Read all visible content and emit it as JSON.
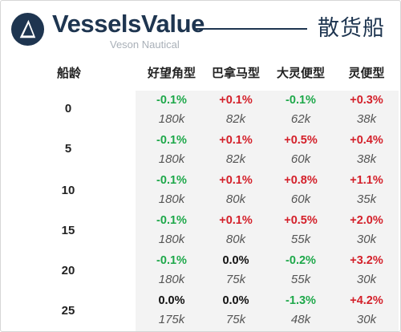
{
  "header": {
    "brand": "VesselsValue",
    "subbrand": "Veson Nautical",
    "title": "散货船",
    "logo_icon": "vesselsvalue-logo-icon"
  },
  "table": {
    "age_label": "船龄",
    "columns": [
      "好望角型",
      "巴拿马型",
      "大灵便型",
      "灵便型"
    ],
    "rows": [
      {
        "age": "0",
        "changes": [
          "-0.1%",
          "+0.1%",
          "-0.1%",
          "+0.3%"
        ],
        "counts": [
          "180k",
          "82k",
          "62k",
          "38k"
        ]
      },
      {
        "age": "5",
        "changes": [
          "-0.1%",
          "+0.1%",
          "+0.5%",
          "+0.4%"
        ],
        "counts": [
          "180k",
          "82k",
          "60k",
          "38k"
        ]
      },
      {
        "age": "10",
        "changes": [
          "-0.1%",
          "+0.1%",
          "+0.8%",
          "+1.1%"
        ],
        "counts": [
          "180k",
          "80k",
          "60k",
          "35k"
        ]
      },
      {
        "age": "15",
        "changes": [
          "-0.1%",
          "+0.1%",
          "+0.5%",
          "+2.0%"
        ],
        "counts": [
          "180k",
          "80k",
          "55k",
          "30k"
        ]
      },
      {
        "age": "20",
        "changes": [
          "-0.1%",
          "0.0%",
          "-0.2%",
          "+3.2%"
        ],
        "counts": [
          "180k",
          "75k",
          "55k",
          "30k"
        ]
      },
      {
        "age": "25",
        "changes": [
          "0.0%",
          "0.0%",
          "-1.3%",
          "+4.2%"
        ],
        "counts": [
          "175k",
          "75k",
          "48k",
          "30k"
        ]
      }
    ]
  },
  "colors": {
    "brand": "#1e3550",
    "positive": "#d4202a",
    "negative": "#1ea84a",
    "neutral": "#111111",
    "grid_background": "#f3f3f3"
  }
}
